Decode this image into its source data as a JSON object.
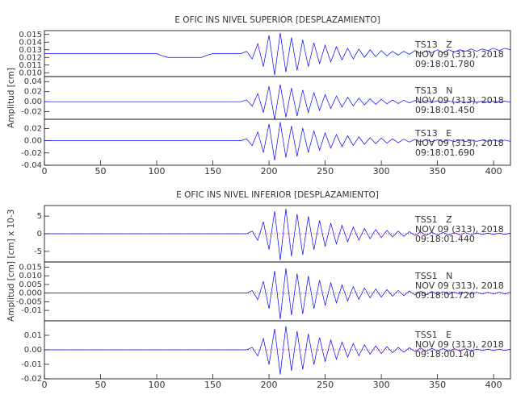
{
  "chart_data": [
    {
      "type": "line",
      "title": "E  OFIC INS NIVEL SUPERIOR [DESPLAZAMIENTO]",
      "color": "#0000ff",
      "xlim": [
        0,
        415
      ],
      "ylim": [
        0.0095,
        0.0155
      ],
      "yticks": [
        {
          "value": 0.01,
          "label": "0.010"
        },
        0.011,
        {
          "value": 0.012,
          "label": "0.012"
        },
        0.013,
        0.014,
        0.015
      ],
      "annotation": [
        "TS13   Z",
        "NOV 09 (313), 2018",
        "09:18:01.780"
      ],
      "x": [
        0,
        5,
        10,
        15,
        20,
        25,
        30,
        35,
        40,
        45,
        50,
        55,
        60,
        65,
        70,
        75,
        80,
        85,
        90,
        95,
        100,
        105,
        110,
        115,
        120,
        125,
        130,
        135,
        140,
        145,
        150,
        155,
        160,
        165,
        170,
        175,
        180,
        185,
        190,
        195,
        200,
        205,
        210,
        215,
        220,
        225,
        230,
        235,
        240,
        245,
        250,
        255,
        260,
        265,
        270,
        275,
        280,
        285,
        290,
        295,
        300,
        305,
        310,
        315,
        320,
        325,
        330,
        335,
        340,
        345,
        350,
        355,
        360,
        365,
        370,
        375,
        380,
        385,
        390,
        395,
        400,
        405,
        410,
        415
      ],
      "values": [
        0.0125,
        0.0125,
        0.0125,
        0.0125,
        0.0125,
        0.0125,
        0.0125,
        0.0125,
        0.0125,
        0.0125,
        0.0125,
        0.0125,
        0.0125,
        0.0125,
        0.0125,
        0.0125,
        0.0125,
        0.0125,
        0.0125,
        0.0125,
        0.0125,
        0.0122,
        0.012,
        0.012,
        0.012,
        0.012,
        0.012,
        0.012,
        0.012,
        0.0123,
        0.0125,
        0.0125,
        0.0125,
        0.0125,
        0.0125,
        0.0125,
        0.0128,
        0.0118,
        0.0138,
        0.0108,
        0.0149,
        0.0097,
        0.0152,
        0.0101,
        0.0146,
        0.0103,
        0.0143,
        0.0108,
        0.0139,
        0.0112,
        0.0136,
        0.0114,
        0.0134,
        0.0117,
        0.0132,
        0.0118,
        0.0131,
        0.012,
        0.013,
        0.0121,
        0.0129,
        0.0122,
        0.0128,
        0.0123,
        0.0128,
        0.0124,
        0.0129,
        0.0125,
        0.0129,
        0.0126,
        0.013,
        0.0126,
        0.013,
        0.0127,
        0.013,
        0.0128,
        0.0131,
        0.0128,
        0.0131,
        0.0129,
        0.0132,
        0.0129,
        0.0132,
        0.013
      ]
    },
    {
      "type": "line",
      "color": "#0000ff",
      "ylabel": "Amplitud [cm]",
      "xlim": [
        0,
        415
      ],
      "ylim": [
        -0.035,
        0.05
      ],
      "yticks": [
        -0.02,
        {
          "value": 0,
          "label": "0.00"
        },
        0.02,
        0.04
      ],
      "annotation": [
        "TS13   N",
        "NOV 09 (313), 2018",
        "09:18:01.450"
      ],
      "x": [
        0,
        5,
        10,
        15,
        20,
        25,
        30,
        35,
        40,
        45,
        50,
        55,
        60,
        65,
        70,
        75,
        80,
        85,
        90,
        95,
        100,
        105,
        110,
        115,
        120,
        125,
        130,
        135,
        140,
        145,
        150,
        155,
        160,
        165,
        170,
        175,
        180,
        185,
        190,
        195,
        200,
        205,
        210,
        215,
        220,
        225,
        230,
        235,
        240,
        245,
        250,
        255,
        260,
        265,
        270,
        275,
        280,
        285,
        290,
        295,
        300,
        305,
        310,
        315,
        320,
        325,
        330,
        335,
        340,
        345,
        350,
        355,
        360,
        365,
        370,
        375,
        380,
        385,
        390,
        395,
        400,
        405,
        410,
        415
      ],
      "values": [
        0,
        0,
        0,
        0,
        0,
        0,
        0,
        0,
        0,
        0,
        0,
        0,
        0,
        0,
        0,
        0,
        0,
        0,
        0,
        0,
        0,
        0,
        0,
        0,
        0,
        0,
        0,
        0,
        0,
        0,
        0,
        0,
        0,
        0,
        0,
        0,
        0.0036,
        -0.009,
        0.0162,
        -0.0216,
        0.0306,
        -0.036,
        0.0342,
        -0.0306,
        0.027,
        -0.0288,
        0.0234,
        -0.0216,
        0.018,
        -0.0173,
        0.0144,
        -0.0137,
        0.0115,
        -0.0108,
        0.009,
        -0.0086,
        0.0072,
        -0.0065,
        0.0058,
        -0.0054,
        0.0047,
        -0.0043,
        0.0036,
        -0.0036,
        0.0029,
        -0.0025,
        0.0025,
        -0.0022,
        0.0022,
        -0.0018,
        0.0018,
        -0.0018,
        0.0014,
        -0.0014,
        0.0014,
        -0.0014,
        0.0011,
        -0.0011,
        0.0011,
        -0.0011,
        0.0011,
        -0.0011,
        0.0011,
        -0.0011
      ]
    },
    {
      "type": "line",
      "color": "#0000ff",
      "xlim": [
        0,
        415
      ],
      "xticks": [
        0,
        50,
        100,
        150,
        200,
        250,
        300,
        350,
        400
      ],
      "ylim": [
        -0.04,
        0.035
      ],
      "yticks": [
        -0.04,
        -0.02,
        {
          "value": 0,
          "label": "0.00"
        },
        0.02
      ],
      "annotation": [
        "TS13   E",
        "NOV 09 (313), 2018",
        "09:18:01.690"
      ],
      "x": [
        0,
        5,
        10,
        15,
        20,
        25,
        30,
        35,
        40,
        45,
        50,
        55,
        60,
        65,
        70,
        75,
        80,
        85,
        90,
        95,
        100,
        105,
        110,
        115,
        120,
        125,
        130,
        135,
        140,
        145,
        150,
        155,
        160,
        165,
        170,
        175,
        180,
        185,
        190,
        195,
        200,
        205,
        210,
        215,
        220,
        225,
        230,
        235,
        240,
        245,
        250,
        255,
        260,
        265,
        270,
        275,
        280,
        285,
        290,
        295,
        300,
        305,
        310,
        315,
        320,
        325,
        330,
        335,
        340,
        345,
        350,
        355,
        360,
        365,
        370,
        375,
        380,
        385,
        390,
        395,
        400,
        405,
        410,
        415
      ],
      "values": [
        0,
        0,
        0,
        0,
        0,
        0,
        0,
        0,
        0,
        0,
        0,
        0,
        0,
        0,
        0,
        0,
        0,
        0,
        0,
        0,
        0,
        0,
        0,
        0,
        0,
        0,
        0,
        0,
        0,
        0,
        0,
        0,
        0,
        0,
        0,
        0,
        0.0032,
        -0.008,
        0.0144,
        -0.0192,
        0.0272,
        -0.032,
        0.0304,
        -0.0272,
        0.024,
        -0.0256,
        0.0208,
        -0.0192,
        0.016,
        -0.0154,
        0.0128,
        -0.0122,
        0.0102,
        -0.0096,
        0.008,
        -0.0077,
        0.0064,
        -0.0058,
        0.0051,
        -0.0048,
        0.0042,
        -0.0038,
        0.0032,
        -0.0032,
        0.0026,
        -0.0022,
        0.0022,
        -0.0019,
        0.0019,
        -0.0016,
        0.0016,
        -0.0016,
        0.0013,
        -0.0013,
        0.0013,
        -0.0013,
        0.001,
        -0.001,
        0.001,
        -0.001,
        0.001,
        -0.001,
        0.001,
        -0.001
      ]
    },
    {
      "type": "line",
      "title": "E  OFIC INS NIVEL INFERIOR [DESPLAZAMIENTO]",
      "color": "#0000ff",
      "ylabel": "[cm] x 10-3",
      "zero_line": true,
      "xlim": [
        0,
        415
      ],
      "ylim": [
        -8,
        8
      ],
      "yticks": [
        -5,
        0,
        5
      ],
      "annotation": [
        "TSS1   Z",
        "NOV 09 (313), 2018",
        "09:18:01.440"
      ],
      "x": [
        0,
        5,
        10,
        15,
        20,
        25,
        30,
        35,
        40,
        45,
        50,
        55,
        60,
        65,
        70,
        75,
        80,
        85,
        90,
        95,
        100,
        105,
        110,
        115,
        120,
        125,
        130,
        135,
        140,
        145,
        150,
        155,
        160,
        165,
        170,
        175,
        180,
        185,
        190,
        195,
        200,
        205,
        210,
        215,
        220,
        225,
        230,
        235,
        240,
        245,
        250,
        255,
        260,
        265,
        270,
        275,
        280,
        285,
        290,
        295,
        300,
        305,
        310,
        315,
        320,
        325,
        330,
        335,
        340,
        345,
        350,
        355,
        360,
        365,
        370,
        375,
        380,
        385,
        390,
        395,
        400,
        405,
        410,
        415
      ],
      "values": [
        0,
        0,
        0,
        0,
        0,
        0,
        0,
        0,
        0,
        0,
        0,
        0,
        0,
        0,
        0,
        0,
        0,
        0,
        0,
        0,
        0,
        0,
        0,
        0,
        0,
        0,
        0,
        0,
        0,
        0,
        0,
        0,
        0,
        0,
        0,
        0,
        0,
        0.75,
        -1.9,
        3.4,
        -4.5,
        6.4,
        -7.5,
        7.1,
        -6.4,
        5.6,
        -6,
        4.9,
        -4.5,
        3.8,
        -3.6,
        3,
        -2.9,
        2.4,
        -2.3,
        1.9,
        -1.8,
        1.5,
        -1.4,
        1.2,
        -1.1,
        1,
        -0.9,
        0.75,
        -0.75,
        0.6,
        -0.5,
        0.5,
        -0.45,
        0.45,
        -0.4,
        0.4,
        -0.4,
        0.3,
        -0.3,
        0.3,
        -0.3,
        0.2,
        -0.2,
        0.2,
        -0.2,
        0.2,
        -0.2,
        0.2
      ]
    },
    {
      "type": "line",
      "color": "#0000ff",
      "ylabel": "Amplitud [cm]",
      "zero_line": true,
      "xlim": [
        0,
        415
      ],
      "ylim": [
        -0.016,
        0.018
      ],
      "yticks": [
        -0.01,
        -0.005,
        {
          "value": 0,
          "label": "0.000"
        },
        0.005,
        {
          "value": 0.01,
          "label": "0.010"
        },
        0.015
      ],
      "annotation": [
        "TSS1   N",
        "NOV 09 (313), 2018",
        "09:18:01.720"
      ],
      "x": [
        0,
        5,
        10,
        15,
        20,
        25,
        30,
        35,
        40,
        45,
        50,
        55,
        60,
        65,
        70,
        75,
        80,
        85,
        90,
        95,
        100,
        105,
        110,
        115,
        120,
        125,
        130,
        135,
        140,
        145,
        150,
        155,
        160,
        165,
        170,
        175,
        180,
        185,
        190,
        195,
        200,
        205,
        210,
        215,
        220,
        225,
        230,
        235,
        240,
        245,
        250,
        255,
        260,
        265,
        270,
        275,
        280,
        285,
        290,
        295,
        300,
        305,
        310,
        315,
        320,
        325,
        330,
        335,
        340,
        345,
        350,
        355,
        360,
        365,
        370,
        375,
        380,
        385,
        390,
        395,
        400,
        405,
        410,
        415
      ],
      "values": [
        0,
        0,
        0,
        0,
        0,
        0,
        0,
        0,
        0,
        0,
        0,
        0,
        0,
        0,
        0,
        0,
        0,
        0,
        0,
        0,
        0,
        0,
        0,
        0,
        0,
        0,
        0,
        0,
        0,
        0,
        0,
        0,
        0,
        0,
        0,
        0,
        0,
        0.0015,
        -0.0038,
        0.0068,
        -0.009,
        0.0128,
        -0.015,
        0.0143,
        -0.0128,
        0.0113,
        -0.012,
        0.0098,
        -0.009,
        0.0075,
        -0.0072,
        0.006,
        -0.0057,
        0.0048,
        -0.0045,
        0.0038,
        -0.0036,
        0.003,
        -0.0027,
        0.0024,
        -0.0023,
        0.002,
        -0.0018,
        0.0015,
        -0.0015,
        0.0012,
        -0.0011,
        0.0011,
        -0.0009,
        0.0009,
        -0.0008,
        0.0008,
        -0.0008,
        0.0006,
        -0.0006,
        0.0006,
        -0.0006,
        0.0005,
        -0.0005,
        0.0005,
        -0.0005,
        0.0005,
        -0.0005,
        0.0005
      ]
    },
    {
      "type": "line",
      "color": "#0000ff",
      "zero_line": true,
      "xlim": [
        0,
        415
      ],
      "xticks": [
        0,
        50,
        100,
        150,
        200,
        250,
        300,
        350,
        400
      ],
      "ylim": [
        -0.02,
        0.02
      ],
      "yticks": [
        -0.02,
        -0.01,
        {
          "value": 0,
          "label": "0.00"
        },
        0.01
      ],
      "annotation": [
        "TSS1   E",
        "NOV 09 (313), 2018",
        "09:18:00.140"
      ],
      "x": [
        0,
        5,
        10,
        15,
        20,
        25,
        30,
        35,
        40,
        45,
        50,
        55,
        60,
        65,
        70,
        75,
        80,
        85,
        90,
        95,
        100,
        105,
        110,
        115,
        120,
        125,
        130,
        135,
        140,
        145,
        150,
        155,
        160,
        165,
        170,
        175,
        180,
        185,
        190,
        195,
        200,
        205,
        210,
        215,
        220,
        225,
        230,
        235,
        240,
        245,
        250,
        255,
        260,
        265,
        270,
        275,
        280,
        285,
        290,
        295,
        300,
        305,
        310,
        315,
        320,
        325,
        330,
        335,
        340,
        345,
        350,
        355,
        360,
        365,
        370,
        375,
        380,
        385,
        390,
        395,
        400,
        405,
        410,
        415
      ],
      "values": [
        0,
        0,
        0,
        0,
        0,
        0,
        0,
        0,
        0,
        0,
        0,
        0,
        0,
        0,
        0,
        0,
        0,
        0,
        0,
        0,
        0,
        0,
        0,
        0,
        0,
        0,
        0,
        0,
        0,
        0,
        0,
        0,
        0,
        0,
        0,
        0,
        0,
        0.0017,
        -0.0043,
        0.0077,
        -0.0102,
        0.0145,
        -0.017,
        0.0162,
        -0.0145,
        0.0128,
        -0.0136,
        0.011,
        -0.0102,
        0.0085,
        -0.0082,
        0.0068,
        -0.0065,
        0.0054,
        -0.0051,
        0.0043,
        -0.0041,
        0.0034,
        -0.0031,
        0.0027,
        -0.0026,
        0.0022,
        -0.002,
        0.0017,
        -0.0017,
        0.0014,
        -0.0012,
        0.0012,
        -0.001,
        0.001,
        -0.0009,
        0.0009,
        -0.0009,
        0.0007,
        -0.0007,
        0.0007,
        -0.0007,
        0.0005,
        -0.0005,
        0.0005,
        -0.0005,
        0.0005,
        -0.0005,
        0.0005
      ]
    }
  ]
}
